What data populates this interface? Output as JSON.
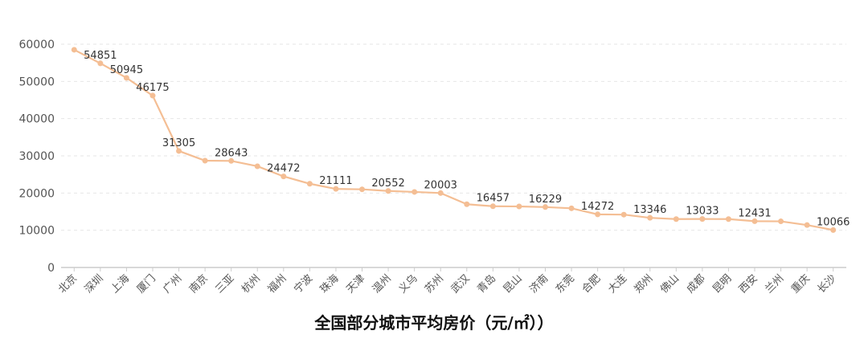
{
  "chart_data": {
    "type": "line",
    "title": "全国部分城市平均房价（元/㎡））",
    "xlabel": "",
    "ylabel": "",
    "ylim": [
      0,
      60000
    ],
    "yticks": [
      0,
      10000,
      20000,
      30000,
      40000,
      50000,
      60000
    ],
    "grid": true,
    "legend": null,
    "line_color": "#F4BE94",
    "categories": [
      "北京",
      "深圳",
      "上海",
      "厦门",
      "广州",
      "南京",
      "三亚",
      "杭州",
      "福州",
      "宁波",
      "珠海",
      "天津",
      "温州",
      "义乌",
      "苏州",
      "武汉",
      "青岛",
      "昆山",
      "济南",
      "东莞",
      "合肥",
      "大连",
      "郑州",
      "佛山",
      "成都",
      "昆明",
      "西安",
      "兰州",
      "重庆",
      "长沙"
    ],
    "series": [
      {
        "name": "平均房价",
        "values": [
          58500,
          54851,
          50945,
          46175,
          31305,
          28700,
          28643,
          27200,
          24472,
          22500,
          21111,
          21000,
          20552,
          20300,
          20003,
          17000,
          16457,
          16400,
          16229,
          15900,
          14272,
          14200,
          13346,
          13000,
          13033,
          13000,
          12431,
          12400,
          11400,
          10066
        ]
      }
    ],
    "data_labels": [
      {
        "index": 1,
        "text": "54851"
      },
      {
        "index": 2,
        "text": "50945"
      },
      {
        "index": 3,
        "text": "46175"
      },
      {
        "index": 4,
        "text": "31305"
      },
      {
        "index": 6,
        "text": "28643"
      },
      {
        "index": 8,
        "text": "24472"
      },
      {
        "index": 10,
        "text": "21111"
      },
      {
        "index": 12,
        "text": "20552"
      },
      {
        "index": 14,
        "text": "20003"
      },
      {
        "index": 16,
        "text": "16457"
      },
      {
        "index": 18,
        "text": "16229"
      },
      {
        "index": 20,
        "text": "14272"
      },
      {
        "index": 22,
        "text": "13346"
      },
      {
        "index": 24,
        "text": "13033"
      },
      {
        "index": 26,
        "text": "12431"
      },
      {
        "index": 29,
        "text": "10066"
      }
    ]
  }
}
